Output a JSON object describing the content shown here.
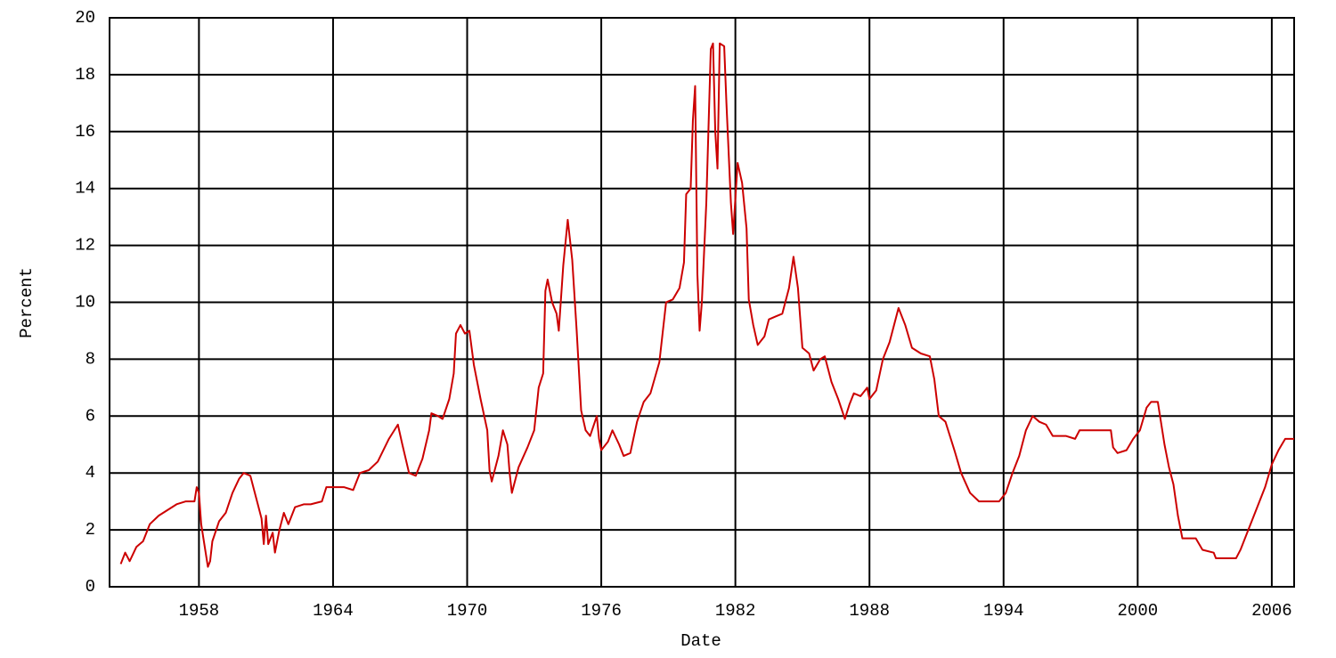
{
  "chart_data": {
    "type": "line",
    "x_label": "Date",
    "y_label": "Percent",
    "color": "#cc0000",
    "grid": true,
    "xlim": [
      1954,
      2007
    ],
    "xticks": [
      1958,
      1964,
      1970,
      1976,
      1982,
      1988,
      1994,
      2000,
      2006
    ],
    "ylim": [
      0,
      20
    ],
    "yticks": [
      0,
      2,
      4,
      6,
      8,
      10,
      12,
      14,
      16,
      18,
      20
    ],
    "x": [
      1954.5,
      1954.7,
      1954.9,
      1955.2,
      1955.5,
      1955.8,
      1956.2,
      1956.6,
      1957.0,
      1957.4,
      1957.8,
      1957.9,
      1958.0,
      1958.1,
      1958.3,
      1958.4,
      1958.5,
      1958.6,
      1958.9,
      1959.2,
      1959.5,
      1959.8,
      1960.0,
      1960.3,
      1960.6,
      1960.8,
      1960.9,
      1961.0,
      1961.1,
      1961.3,
      1961.4,
      1961.6,
      1961.8,
      1962.0,
      1962.3,
      1962.7,
      1963.0,
      1963.5,
      1963.7,
      1964.0,
      1964.5,
      1964.9,
      1965.2,
      1965.6,
      1966.0,
      1966.5,
      1966.9,
      1967.1,
      1967.4,
      1967.7,
      1968.0,
      1968.3,
      1968.4,
      1968.7,
      1968.9,
      1969.2,
      1969.4,
      1969.5,
      1969.7,
      1969.9,
      1970.1,
      1970.3,
      1970.6,
      1970.9,
      1971.0,
      1971.1,
      1971.4,
      1971.6,
      1971.8,
      1971.9,
      1972.0,
      1972.3,
      1972.7,
      1973.0,
      1973.2,
      1973.4,
      1973.5,
      1973.6,
      1973.8,
      1974.0,
      1974.1,
      1974.3,
      1974.5,
      1974.7,
      1974.9,
      1975.1,
      1975.3,
      1975.5,
      1975.8,
      1975.9,
      1976.0,
      1976.3,
      1976.5,
      1976.8,
      1977.0,
      1977.3,
      1977.6,
      1977.9,
      1978.2,
      1978.6,
      1978.9,
      1979.2,
      1979.5,
      1979.7,
      1979.8,
      1980.0,
      1980.1,
      1980.2,
      1980.3,
      1980.4,
      1980.5,
      1980.7,
      1980.9,
      1981.0,
      1981.1,
      1981.2,
      1981.3,
      1981.5,
      1981.6,
      1981.8,
      1981.9,
      1982.1,
      1982.3,
      1982.5,
      1982.6,
      1982.8,
      1983.0,
      1983.3,
      1983.5,
      1983.8,
      1984.1,
      1984.4,
      1984.6,
      1984.8,
      1985.0,
      1985.3,
      1985.5,
      1985.8,
      1986.0,
      1986.3,
      1986.6,
      1986.9,
      1987.1,
      1987.3,
      1987.6,
      1987.9,
      1988.0,
      1988.3,
      1988.6,
      1988.9,
      1989.1,
      1989.3,
      1989.6,
      1989.9,
      1990.3,
      1990.7,
      1990.9,
      1991.1,
      1991.4,
      1991.8,
      1992.1,
      1992.5,
      1992.9,
      1993.3,
      1993.8,
      1994.1,
      1994.4,
      1994.7,
      1995.0,
      1995.3,
      1995.6,
      1995.9,
      1996.2,
      1996.8,
      1997.2,
      1997.4,
      1997.8,
      1998.5,
      1998.8,
      1998.9,
      1999.1,
      1999.5,
      1999.8,
      2000.1,
      2000.4,
      2000.6,
      2000.9,
      2001.0,
      2001.2,
      2001.4,
      2001.6,
      2001.8,
      2002.0,
      2002.6,
      2002.9,
      2003.4,
      2003.5,
      2004.4,
      2004.6,
      2004.9,
      2005.3,
      2005.7,
      2006.0,
      2006.3,
      2006.6,
      2007.0
    ],
    "values": [
      0.8,
      1.2,
      0.9,
      1.4,
      1.6,
      2.2,
      2.5,
      2.7,
      2.9,
      3.0,
      3.0,
      3.5,
      3.3,
      2.2,
      1.2,
      0.7,
      0.9,
      1.6,
      2.3,
      2.6,
      3.3,
      3.8,
      4.0,
      3.9,
      3.0,
      2.4,
      1.5,
      2.5,
      1.5,
      1.9,
      1.2,
      2.0,
      2.6,
      2.2,
      2.8,
      2.9,
      2.9,
      3.0,
      3.5,
      3.5,
      3.5,
      3.4,
      4.0,
      4.1,
      4.4,
      5.2,
      5.7,
      5.0,
      4.0,
      3.9,
      4.5,
      5.5,
      6.1,
      6.0,
      5.9,
      6.6,
      7.5,
      8.9,
      9.2,
      8.9,
      9.0,
      7.8,
      6.6,
      5.5,
      4.1,
      3.7,
      4.6,
      5.5,
      5.0,
      4.0,
      3.3,
      4.2,
      4.9,
      5.5,
      7.0,
      7.5,
      10.4,
      10.8,
      10.0,
      9.6,
      9.0,
      11.3,
      12.9,
      11.5,
      9.0,
      6.2,
      5.5,
      5.3,
      6.0,
      5.2,
      4.8,
      5.1,
      5.5,
      5.0,
      4.6,
      4.7,
      5.8,
      6.5,
      6.8,
      7.9,
      10.0,
      10.1,
      10.5,
      11.4,
      13.8,
      14.0,
      16.4,
      17.6,
      11.0,
      9.0,
      10.0,
      13.5,
      18.9,
      19.1,
      16.0,
      14.7,
      19.1,
      19.0,
      17.0,
      13.5,
      12.4,
      14.9,
      14.2,
      12.6,
      10.1,
      9.2,
      8.5,
      8.8,
      9.4,
      9.5,
      9.6,
      10.5,
      11.6,
      10.5,
      8.4,
      8.2,
      7.6,
      8.0,
      8.1,
      7.2,
      6.6,
      5.9,
      6.4,
      6.8,
      6.7,
      7.0,
      6.6,
      6.9,
      8.0,
      8.6,
      9.2,
      9.8,
      9.2,
      8.4,
      8.2,
      8.1,
      7.3,
      6.0,
      5.8,
      4.8,
      4.0,
      3.3,
      3.0,
      3.0,
      3.0,
      3.3,
      4.0,
      4.6,
      5.5,
      6.0,
      5.8,
      5.7,
      5.3,
      5.3,
      5.2,
      5.5,
      5.5,
      5.5,
      5.5,
      4.9,
      4.7,
      4.8,
      5.2,
      5.5,
      6.3,
      6.5,
      6.5,
      6.0,
      5.0,
      4.2,
      3.6,
      2.5,
      1.7,
      1.7,
      1.3,
      1.2,
      1.0,
      1.0,
      1.3,
      1.9,
      2.7,
      3.5,
      4.3,
      4.8,
      5.2,
      5.2
    ]
  }
}
